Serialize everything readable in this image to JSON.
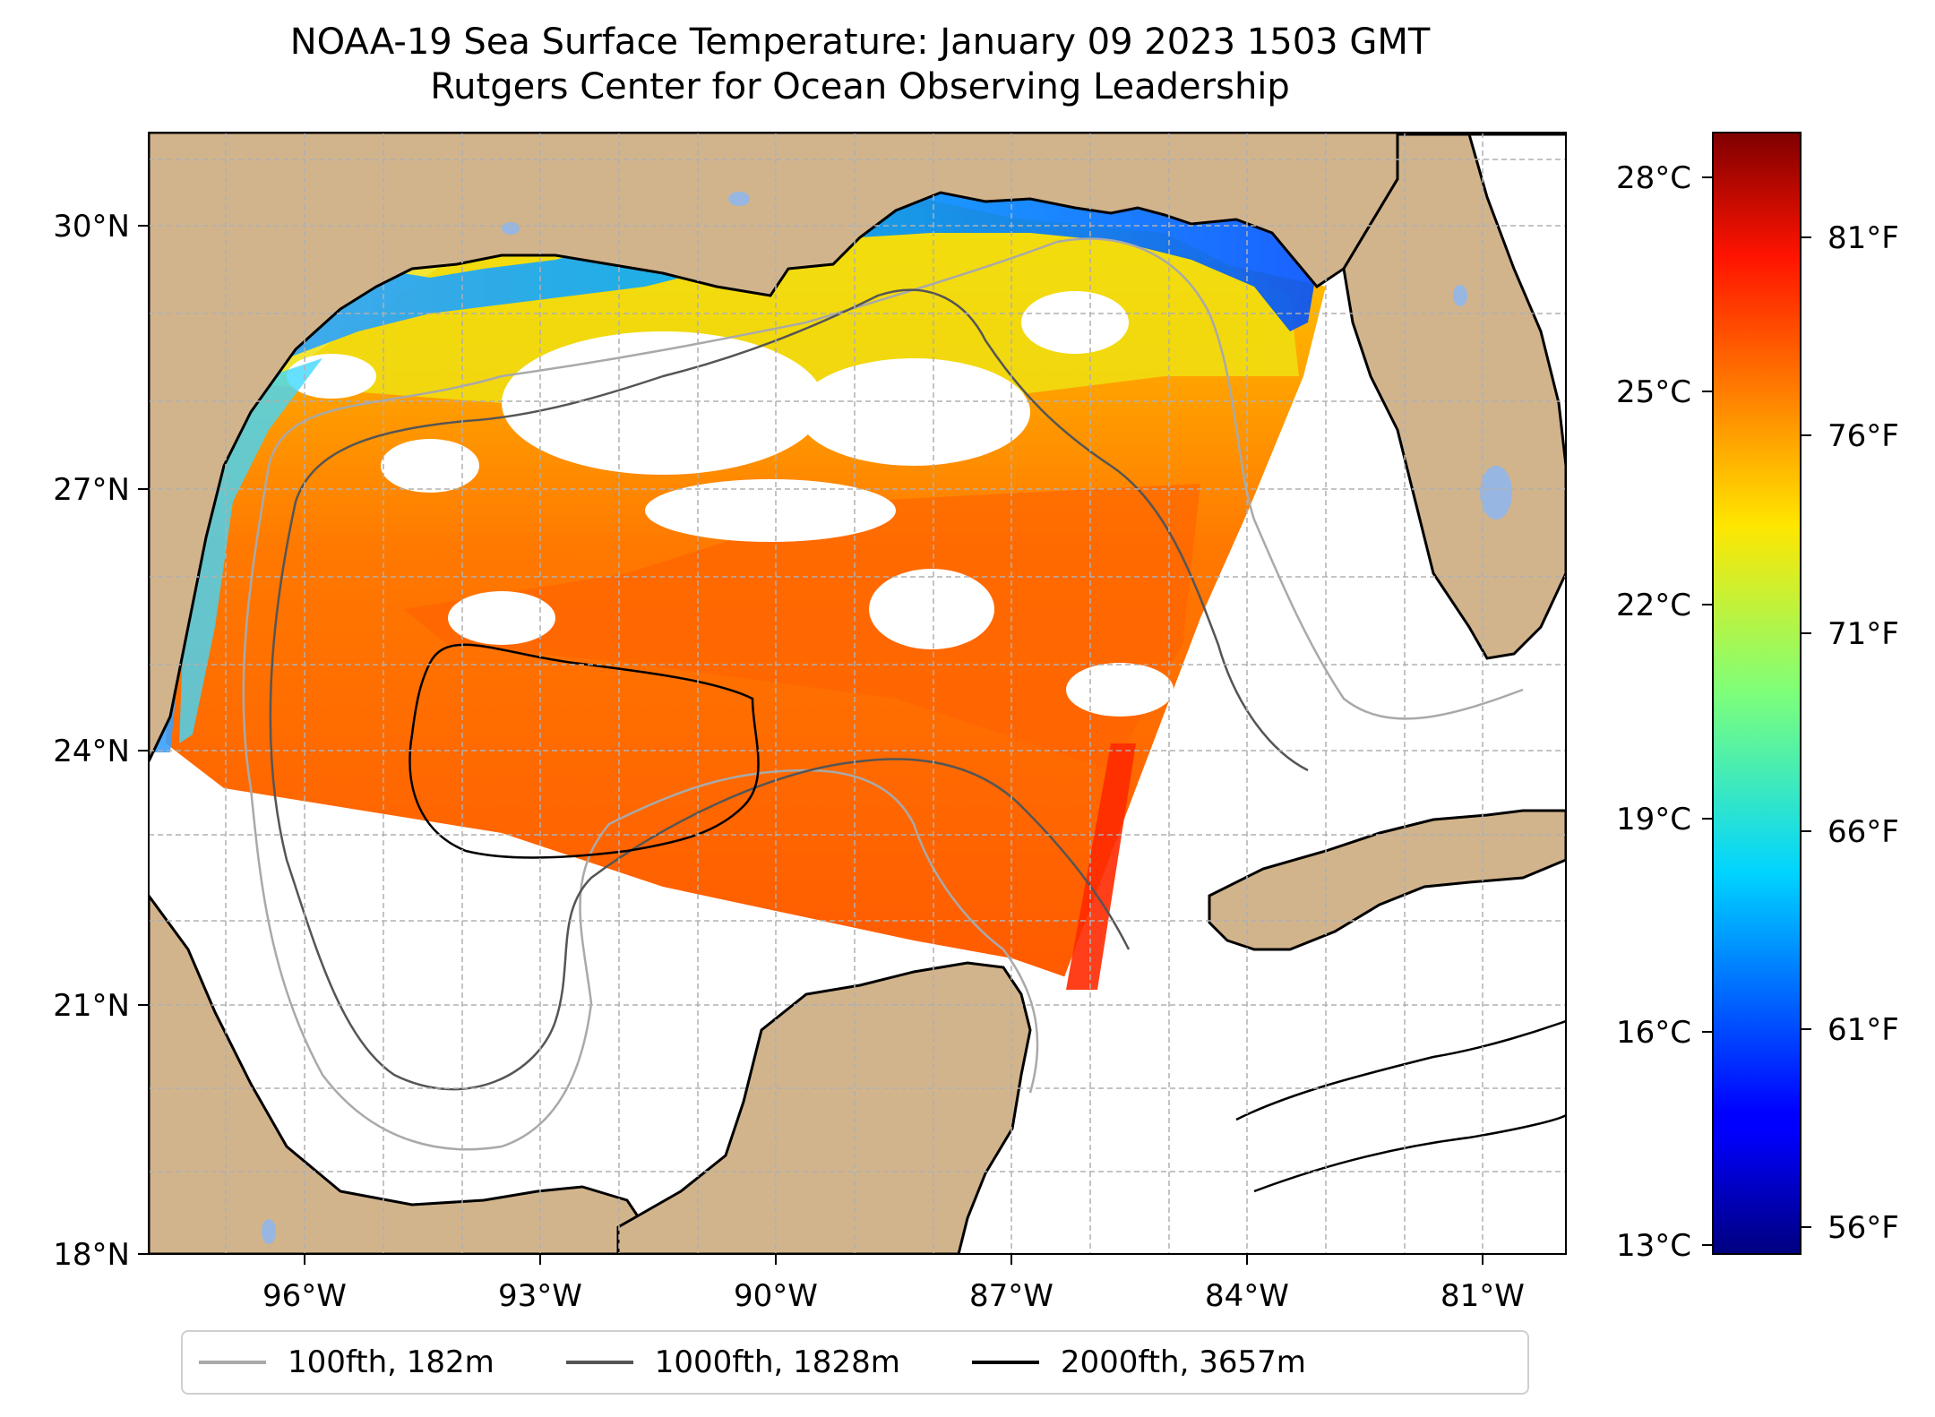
{
  "title": {
    "line1": "NOAA-19 Sea Surface Temperature: January 09 2023 1503 GMT",
    "line2": "Rutgers Center for Ocean Observing Leadership"
  },
  "map": {
    "lat_ticks": [
      "30°N",
      "27°N",
      "24°N",
      "21°N",
      "18°N"
    ],
    "lon_ticks": [
      "96°W",
      "93°W",
      "90°W",
      "87°W",
      "84°W",
      "81°W"
    ],
    "land_color": "#d2b48c",
    "lake_color": "#97b6e1",
    "no_data_color": "#ffffff",
    "grid": "dashed"
  },
  "colorbar": {
    "celsius_ticks": [
      "28°C",
      "25°C",
      "22°C",
      "19°C",
      "16°C",
      "13°C"
    ],
    "fahrenheit_ticks": [
      "81°F",
      "76°F",
      "71°F",
      "66°F",
      "61°F",
      "56°F"
    ],
    "colormap": "jet"
  },
  "legend": {
    "items": [
      {
        "label": "100fth, 182m",
        "color": "#a9a9a9"
      },
      {
        "label": "1000fth, 1828m",
        "color": "#555555"
      },
      {
        "label": "2000fth, 3657m",
        "color": "#000000"
      }
    ]
  }
}
